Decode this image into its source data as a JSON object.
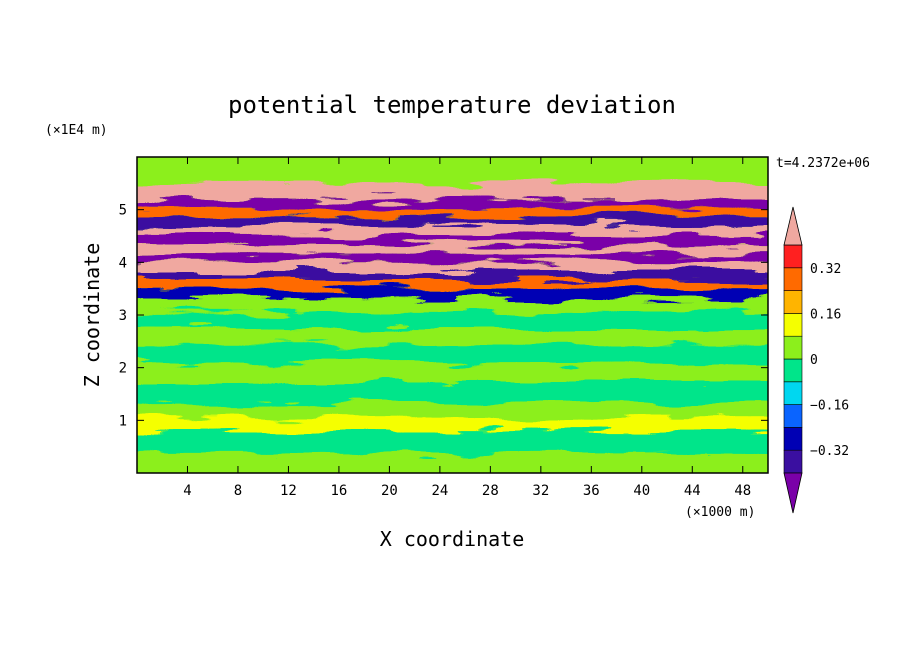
{
  "chart_data": {
    "type": "heatmap",
    "title": "potential temperature deviation",
    "xlabel": "X coordinate",
    "ylabel": "Z coordinate",
    "x_unit": "(×1000 m)",
    "y_unit": "(×1E4 m)",
    "time_label": "t=4.2372e+06",
    "xlim": [
      0,
      50
    ],
    "ylim": [
      0,
      6
    ],
    "x_ticks": [
      4,
      8,
      12,
      16,
      20,
      24,
      28,
      32,
      36,
      40,
      44,
      48
    ],
    "y_ticks": [
      1,
      2,
      3,
      4,
      5
    ],
    "colorbar": {
      "levels": [
        -0.48,
        -0.4,
        -0.32,
        -0.24,
        -0.16,
        -0.08,
        0,
        0.08,
        0.16,
        0.24,
        0.32,
        0.4,
        0.48
      ],
      "colors": [
        "#7a00a8",
        "#3a0fa0",
        "#0000b4",
        "#0a64ff",
        "#00d7f0",
        "#00e58a",
        "#8cef1c",
        "#f5ff00",
        "#ffb400",
        "#ff6a00",
        "#ff2020",
        "#f0a8a0"
      ],
      "tick_labels": [
        "0.32",
        "0.16",
        "0",
        "−0.16",
        "−0.32"
      ],
      "tick_values": [
        0.32,
        0.16,
        0,
        -0.16,
        -0.32
      ]
    },
    "bands": [
      {
        "z": 5.72,
        "value": 0.0
      },
      {
        "z": 5.28,
        "value": 0.42
      },
      {
        "z": 5.1,
        "value": -0.45
      },
      {
        "z": 4.95,
        "value": 0.3
      },
      {
        "z": 4.78,
        "value": -0.4
      },
      {
        "z": 4.62,
        "value": 0.42
      },
      {
        "z": 4.42,
        "value": -0.45
      },
      {
        "z": 4.25,
        "value": 0.4
      },
      {
        "z": 4.08,
        "value": -0.42
      },
      {
        "z": 3.92,
        "value": 0.42
      },
      {
        "z": 3.75,
        "value": -0.35
      },
      {
        "z": 3.58,
        "value": 0.3
      },
      {
        "z": 3.42,
        "value": -0.3
      },
      {
        "z": 3.2,
        "value": 0.05
      },
      {
        "z": 2.9,
        "value": -0.02
      },
      {
        "z": 2.6,
        "value": 0.04
      },
      {
        "z": 2.25,
        "value": -0.03
      },
      {
        "z": 1.9,
        "value": 0.03
      },
      {
        "z": 1.5,
        "value": -0.03
      },
      {
        "z": 1.15,
        "value": 0.02
      },
      {
        "z": 0.97,
        "value": 0.15
      },
      {
        "z": 0.6,
        "value": -0.04
      },
      {
        "z": 0.2,
        "value": 0.02
      }
    ]
  }
}
